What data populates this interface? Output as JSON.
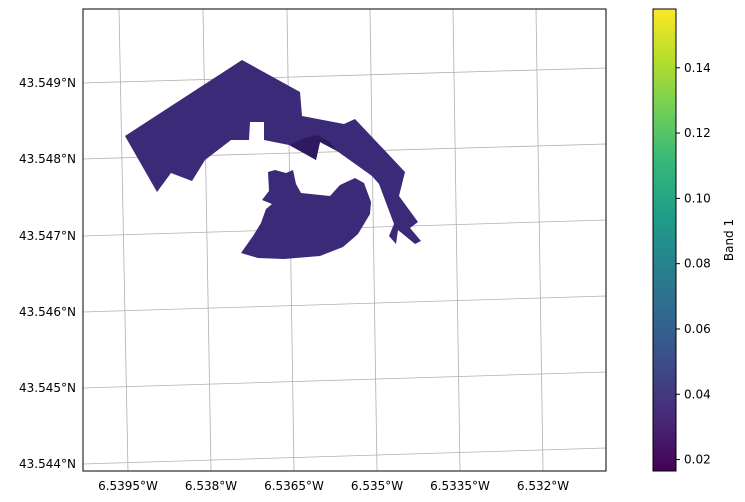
{
  "chart_data": {
    "type": "heatmap",
    "subtype": "georeferenced raster map",
    "title": "",
    "xlabel": "",
    "ylabel": "",
    "x_ticks": [
      {
        "value": -6.5395,
        "label": "6.5395°W"
      },
      {
        "value": -6.538,
        "label": "6.538°W"
      },
      {
        "value": -6.5365,
        "label": "6.5365°W"
      },
      {
        "value": -6.535,
        "label": "6.535°W"
      },
      {
        "value": -6.5335,
        "label": "6.5335°W"
      },
      {
        "value": -6.532,
        "label": "6.532°W"
      }
    ],
    "y_ticks": [
      {
        "value": 43.549,
        "label": "43.549°N"
      },
      {
        "value": 43.548,
        "label": "43.548°N"
      },
      {
        "value": 43.547,
        "label": "43.547°N"
      },
      {
        "value": 43.546,
        "label": "43.546°N"
      },
      {
        "value": 43.545,
        "label": "43.545°N"
      },
      {
        "value": 43.544,
        "label": "43.544°N"
      }
    ],
    "grid": true,
    "raster": {
      "band": "Band 1",
      "dominant_value_range": [
        0.02,
        0.04
      ],
      "no_data": "transparent"
    },
    "colorbar": {
      "label": "Band 1",
      "colormap": "viridis",
      "range": [
        0.0165,
        0.158
      ],
      "ticks": [
        {
          "value": 0.02,
          "label": "0.02"
        },
        {
          "value": 0.04,
          "label": "0.04"
        },
        {
          "value": 0.06,
          "label": "0.06"
        },
        {
          "value": 0.08,
          "label": "0.08"
        },
        {
          "value": 0.1,
          "label": "0.10"
        },
        {
          "value": 0.12,
          "label": "0.12"
        },
        {
          "value": 0.14,
          "label": "0.14"
        }
      ]
    },
    "colors": {
      "raster_fill": "#3b2a78",
      "raster_dark": "#2e1a5e",
      "gridline": "#b0b0b0",
      "viridis": [
        "#440154",
        "#482878",
        "#3e4989",
        "#31688e",
        "#26828e",
        "#1f9e89",
        "#35b779",
        "#6ece58",
        "#b5de2b",
        "#fde725"
      ]
    }
  }
}
